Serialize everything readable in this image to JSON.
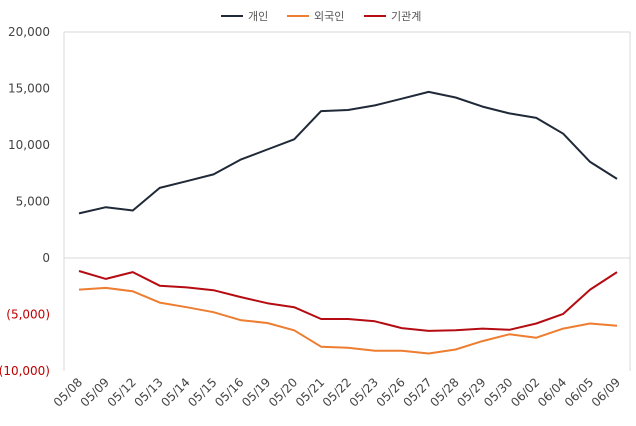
{
  "chart_data": {
    "type": "line",
    "categories": [
      "05/08",
      "05/09",
      "05/12",
      "05/13",
      "05/14",
      "05/15",
      "05/16",
      "05/19",
      "05/20",
      "05/21",
      "05/22",
      "05/23",
      "05/26",
      "05/27",
      "05/28",
      "05/29",
      "05/30",
      "06/02",
      "06/04",
      "06/05",
      "06/09"
    ],
    "series": [
      {
        "name": "개인",
        "color": "#1f2937",
        "values": [
          3950,
          4500,
          4200,
          6200,
          6800,
          7400,
          8700,
          9600,
          10500,
          13000,
          13100,
          13500,
          14100,
          14700,
          14200,
          13400,
          12800,
          12400,
          11000,
          8500,
          7000
        ]
      },
      {
        "name": "외국인",
        "color": "#ed7d31",
        "values": [
          -2800,
          -2650,
          -2950,
          -3950,
          -4350,
          -4800,
          -5500,
          -5750,
          -6400,
          -7850,
          -7950,
          -8200,
          -8200,
          -8450,
          -8100,
          -7350,
          -6750,
          -7050,
          -6250,
          -5800,
          -6000
        ]
      },
      {
        "name": "기관계",
        "color": "#b40c12",
        "values": [
          -1150,
          -1850,
          -1250,
          -2450,
          -2600,
          -2850,
          -3450,
          -4000,
          -4350,
          -5400,
          -5400,
          -5600,
          -6200,
          -6450,
          -6400,
          -6250,
          -6350,
          -5800,
          -4950,
          -2800,
          -1250
        ]
      }
    ],
    "y_ticks": [
      20000,
      15000,
      10000,
      5000,
      0,
      -5000,
      -10000
    ],
    "y_tick_labels": [
      "20,000",
      "15,000",
      "10,000",
      "5,000",
      "0",
      "(5,000)",
      "(10,000)"
    ],
    "y_tick_colors": [
      "#444444",
      "#444444",
      "#444444",
      "#444444",
      "#444444",
      "#c00000",
      "#c00000"
    ],
    "ylim": [
      -10000,
      20000
    ],
    "grid": false,
    "legend_position": "top-center"
  }
}
